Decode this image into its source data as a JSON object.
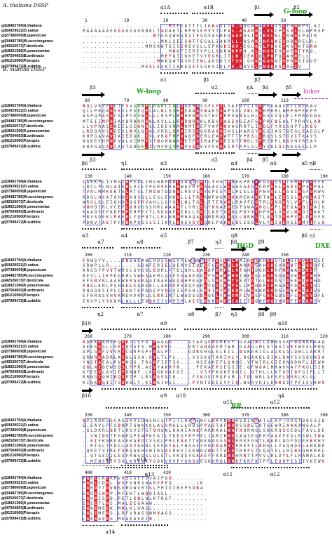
{
  "dssp_labels": {
    "top": "A. thaliana DSSP",
    "bottom": "B. subtilis DSSP"
  },
  "sequences": [
    "gi|18402794|A.thaliana",
    "gi|50929521|O.sativa",
    "gi|27380009|B.japonicum",
    "gi|34482785|W.succinogenes",
    "gi|42526073|T.denticola",
    "gi|18921366|K.pneumoniae",
    "gi|47504693|B.anthracis",
    "gi|91216960|P.torquis",
    "gi|37999472|B.subtilis"
  ],
  "blocks": [
    {
      "numbers": [
        "1",
        "10",
        "20",
        "30",
        "40",
        "50"
      ],
      "top_ss": [
        "α1A",
        "α1B",
        "β1",
        "β2"
      ],
      "bottom_ss": [
        "α1",
        "β1",
        "β2"
      ],
      "motifs": [
        "G-loop"
      ],
      "rows": [
        "......................MSFEKTTFLIKNVSLTR.GDGNHAAFCISLFRNHPE.AI",
        "MAAAAAAEGGGGGGGNNKLTGDAETLRPRSEFVYTLPAL.AGARRS.VLCPVSVLSLNPRSP",
        "..................MTGSQWHQDITFSDVAGRFQAGFDSIGIRVLNLIRNGIPATR",
        "....................MKLSEISHTFEGALIAKRLL.RSAKIHFVKISHDGRELR.",
        "................MMSKNTDISIREVSLLEPKGDSGV.EGLKYLFHVEYKSEKTGRW",
        "......................MNKTIIREVPLLSDRARPFH.ALLHSVEHDVEGTTRQ.",
        "....................MEFQIIKKETVYEGRLITLN.IEKIQLPNEQIAHRELL",
        "...................MNKQWTDSKIEWLADGDIYTSK.GHKGGGVNIVYRDSIGVE",
        "...............MKSLEEKTIAKEQIFSGKVIDLYV.EDVELPNGKASKREIV"
      ]
    },
    {
      "numbers": [
        "60",
        "70",
        "80",
        "90",
        "100",
        "110"
      ],
      "top_ss": [
        "β3",
        "α2",
        "ηA",
        "β4",
        "β5"
      ],
      "bottom_ss": [
        "β3",
        "α2",
        "β4",
        "β5"
      ],
      "motifs": [
        "W-loop"
      ],
      "linker": "linker",
      "rows": [
        "RQLVRVPGLTFSVSDAYLRARCLDLSGEMGSSFCPILSAEVYLTGSPEKAAVVFLRERAV",
        "QCLPRQAGSSSLFSEQFLALRLSSHEEAAASWAHSSAPSDLVRLRSHPRRLNMFHPEKPP",
        "ASPQPASGCSIPTEVWLLLLRSPLRRRRRWVGTHCEPPSWDALHLVGSGVQLFLFRRDDNG",
        "MTEIIMPGIAVDRRRRGKLKVLLLRVRQRQKLKDVTASIHGEAFGVPRFDEALTPRHVLAR",
        "LLVPRASENEILGEGNRSLIDEVRMLRMTGEFVAPLQVAGRRTLIRDLFYRSGHPTLKES",
        "LRDQRVSKEEVLRVLQEQLVRDLERVIRSCQGRAGGIHSLHARGYDGGIASTQEGLEAGGLP",
        "KHPGAVAVIAIEDGK.IVLVRQFRPVAQFGERLEAEWTTTYPRSLLRQSLSTGVITKAYS",
        "NGKEYHRNFVALVCMMYSTWGMNWKLETFSIRAPWSEIGTTMDLSFRIHPLHGVHYREAY",
        "KHPGAVAVIAVTDDGK.IVMVRQYRPVVEQEYFFKEEIRTPPLGLAYVDLVLNKGEELLP"
      ]
    },
    {
      "numbers": [
        "130",
        "140",
        "150",
        "160",
        "170",
        "180",
        "190"
      ],
      "top_ss": [
        "β6",
        "η1",
        "α3",
        "α4",
        "α5",
        "ηB",
        "α6"
      ],
      "bottom_ss": [
        "α3",
        "α4",
        "α5",
        "ηB",
        "β6",
        "η1"
      ],
      "rows": [
        "LAKKPLIVMGLEPEALIMGWNPQWLGAQVLHILYHGTENEKPRTSEGSIVSDLEMGYNLKFEPGWAWGVST",
        "LRCLPLNLAIERLVCLFPERFERAHWAYRPDAAAVLALGASAAGAGRPESLPASSVPALPALRRFLGWVRK",
        "TVRLMMKEKTGLRTGLTMGWTDDRGLREVLEYGPEEYGLPLSLETPNVQLLVGGIHSFVRWVAYLKPVTS",
        "RDGLHCATGHDIKDSQLLEGLEHDVLLLTRLRWPWGMEVAMEKAKRTAALEESGLKVHLAITIFNCSWPG",
        "WRGLKLEIQHDLQGERVAHLLGYGLLNLTGLLETERAALRAVFDGTRLENGASLVFFLTHLHETNSARKT",
        "VNHDIRLVCEFLGHGGGSHRLAAARTLYRLSGYNGAEREGTGWAFHQLAPLAEGAMQIGAIGVLWIEAGS",
        "KAADEEFKDFRFEMPEYTLRDVAFSIRLLSGCLDETGIDLPDYYYHPEMLVAVLWKDILAKTGAMRGLPK",
        "PRVSDEKLFAEELYQPNTLLRLWNMMHAQATAMDRALVQLLDRWLTLAVTDYHPVHLDFGFGRLLAMRDAIA",
        "PDNVFAETPFRRAPRGSLSIIKRLRAEVSVYQKLPAKKEGLEEGLVLYDIVERGEPMYIFLGPVNAFGEE"
      ]
    },
    {
      "numbers": [
        "200",
        "210",
        "220",
        "230",
        "240",
        "250"
      ],
      "top_ss": [
        "α7",
        "α8",
        "β7",
        "η3",
        "β8",
        "β9"
      ],
      "bottom_ss": [
        "η2",
        "α7",
        "α8",
        "β7",
        "η3",
        "β8",
        "β9"
      ],
      "motifs": [
        "HGD",
        "DXE"
      ],
      "rows": [
        "FRWSYV....DDDAKAWLHDSGKSVYEWQRRIFAEILALMAIREGKHGDSTDLGFAVIEEEF",
        "SRWPLLR.......GDAFERIELAERVEIQDEFGQMVQLDARREGRHSDSVDVDTLFGEDFE",
        "ARGSYPVVTWRSLGVGGLEDRLYTDLQHLAAEDPDRPLLVTGHTDGHLHRFMVWADDELF",
        "RESLLIKPEGRRLSWKSAKMLQSFSGAAEDGGFSRAEFMKIHEQGLHGRSDDSVKLPTWEF",
        "EFSRVRLAAEWERAARAAIRAEWGQAHPEAEQLVRGMFTVEVTDTGLHGDSTDEEMIEEHD",
        "RHGLKRLPSHAELEQAERLLAKDFPSDQFQRLVQSIEMYALIPEHERIRHGDSFDQKTTVI",
        "RHGGKFIPLCIAKTKPAQEPVQEVIEPGHLGKVIRYAFEDRLWGKNRSGDSLDAVHEAIVE",
        "EFHRASYHVRMEHVRRLLERRIRTLWADSSDLQELYHHVMFIVPEPGHLGDSDFCVMEVDFE",
        "ERVPLYSKKMLWLLLEDDKEIVKPIMLAIEGKKKSAEEIGIIIEQNEHGIHGDFEYQKFSV"
      ]
    },
    {
      "numbers": [
        "260",
        "270",
        "280",
        "290",
        "300",
        "310",
        "320"
      ],
      "top_ss": [
        "β10",
        "α9",
        "α10"
      ],
      "bottom_ss": [
        "β10",
        "α9",
        "η4",
        "α10"
      ],
      "rows": [
        "DDEKEAHVPQERTLLFG.FAQQG....ITAEQENDRKEY.GVAQWLLDWNSVKFWQWRRAAQFTLVR",
        "AEKSGGLLVFQQTGFS.MFAVEG....VKTAQDAERTWR.GGAQLMLDTAGIVKFWEELRNQ",
        "DPLGEFVVVRTCGRPSPFAALPT....GDRGHGLELEIL.DGRERIGLAIKLGLQWLLAKRTQ",
        "QRWRKADRLAIGLGSA.RYLTLPL....VSSKQTAHIHLY.RGAKDLDIALDAYSVSQQWIAL",
        "YNSTAEALPVWHGG.TRGKFIETSG....HSEQKEFLQHQG.VTWIRLGIEKNDDNFLIEWHHP",
        "QGLWIDEWSDSLTPR.AEVYAKRYN....PEKAEPSEQSIE.GFWGALMRAVKAYFKGLSIRL",
        "KTEEVLAVIEFDNNF.LKEGKVAEGI....VSYFKGKEDKIL.QTHLLLKTGDIQFGIPLLTHE",
        "RRNGTQMIRQSEIP.LRVASEDIK....FSKGEIRQFVM.LTDLWRLQESELDRRLKLGL",
        "KIGKTQIITSDADLY.KLWKIHSI....FVNTEDEEVFIQ.WSRVRILKNKGIFPFIEVKHV"
      ]
    },
    {
      "numbers": [
        "330",
        "340",
        "350",
        "360",
        "370",
        "380",
        "390"
      ],
      "top_ss": [
        "α11",
        "α12"
      ],
      "bottom_ss": [
        "α11",
        "α12",
        "α13"
      ],
      "motifs": [
        "RR"
      ],
      "rows": [
        "QVLADKGGCASIRVSDNSNCSTPITLRPPENFLRAVNDRKSDIKFATLLAPTRRGTDQSSIDDSKDIWAAL",
        "G.EAVLPFSDNPTGWKKKLALVMGLLLRDSPPASTAFHVRSSRELRTGEWRIAAKANGALP",
        ".GLDKRLGRTLRGVSFGTQHQNLRAAIAAKFARRAALVAFHQRNGLSNGRQSGEDLFAVLDEGAER",
        "..VWIDKTFGNEQPEAPKEAILTKEGFPPPELIARIRDEIAQSEQRRFAGEFEGLRSWLTNAAK",
        "..EIFKNRFAVEKAEDIVSKLPRLEAKTTKNKNQSGSNLRRKFGNTLAKRLDGFDDEEKKHYADLL",
        "..RTGLTFDGLASVAENLIEEAYALYHGAEVERDDAMVLRREFTLEHGLLYAQHDELARKNDS",
        ".QKETVIRLFSRQAKHENIRSAIRHVIGKWDVWDTTALSTRRFLTLQGYSLLHIHEQHKRKLEVL",
        "..QTGEDILESFRWGQGLQLETLVKQEYEKAEFFARDAEHRRTTPVVLRLDYLFLHAMALKDQE",
        "..MENSIIVSGLKRLVKYGDKVRVFYGNSKESKHRQLIREFKRFKIPFLEVHPISIIVKEWV"
      ]
    },
    {
      "numbers": [
        "400",
        "410",
        "420"
      ],
      "top_ss": [
        "η5",
        "α14"
      ],
      "bottom_ss": [
        "α14"
      ],
      "rows": [
        "PAKLCKERHVRSIGEYVSAIPQG........",
        "PANLCDRL.VGFVNRVHAREPEQ......LK",
        "LGRDYTDVNSVRDWVRTGLPHIGIREPSDRA",
        "EGDEIHKP.RFEKTLWQQIAEL.........",
        "LGHPISPD.PETLKRLNLKTRGF.........",
        "IGEETLRS.MALIEGAAW.............",
        "IGNEMEEK.MRLKLHAGL.............",
        "LGLEMERS.LRFVRAGSWMVAGG........",
        "LGESAEKG.MKAEASEIH.............."
      ]
    }
  ]
}
